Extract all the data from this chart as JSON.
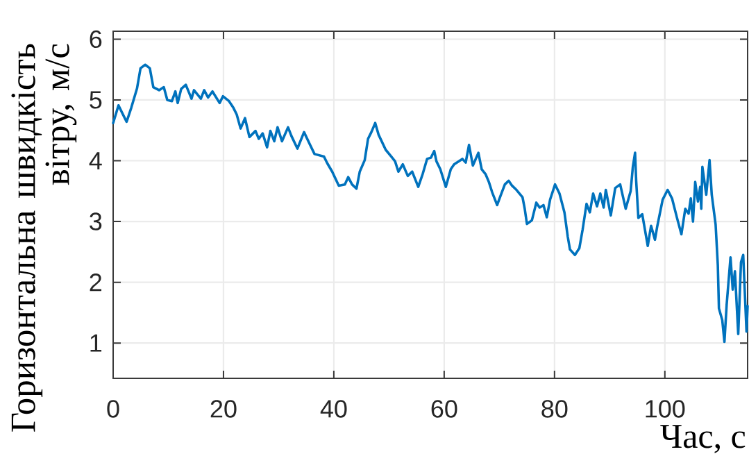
{
  "chart_data": {
    "type": "line",
    "xlabel": "Час, с",
    "ylabel": "Горизонтальна швидкість вітру, м/с",
    "xlim": [
      0,
      115
    ],
    "ylim": [
      0.42,
      6.13
    ],
    "xticks": [
      0,
      20,
      40,
      60,
      80,
      100
    ],
    "yticks": [
      1,
      2,
      3,
      4,
      5,
      6
    ],
    "grid": true,
    "series": [
      {
        "color": "#0072bd",
        "x": [
          0,
          0.97,
          2.44,
          3.28,
          4.33,
          4.96,
          5.81,
          6.65,
          7.28,
          8.33,
          9.18,
          9.81,
          10.65,
          11.28,
          11.7,
          12.33,
          13.17,
          14.2,
          14.65,
          15.9,
          16.5,
          17.2,
          18.0,
          19.3,
          19.9,
          21.0,
          21.8,
          22.4,
          23.1,
          23.9,
          24.7,
          25.8,
          26.4,
          27.1,
          27.9,
          28.5,
          29.2,
          29.8,
          30.6,
          31.7,
          32.3,
          33.4,
          34.6,
          35.7,
          36.5,
          38.2,
          38.8,
          39.7,
          40.9,
          42.0,
          42.6,
          43.3,
          44.1,
          44.7,
          45.6,
          46.2,
          46.8,
          47.5,
          48.1,
          49.4,
          50.4,
          51.1,
          51.7,
          52.5,
          53.4,
          54.2,
          55.3,
          56.1,
          56.9,
          57.6,
          58.2,
          58.6,
          59.3,
          60.3,
          61.2,
          61.8,
          63.3,
          63.9,
          64.5,
          65.2,
          66.2,
          66.8,
          67.5,
          68.1,
          68.7,
          69.6,
          70.2,
          71.0,
          71.7,
          72.3,
          73.1,
          74.2,
          74.6,
          75.0,
          75.9,
          76.7,
          77.3,
          78.0,
          78.6,
          79.2,
          80.1,
          80.9,
          81.8,
          82.4,
          82.8,
          83.7,
          84.5,
          85.1,
          85.8,
          86.4,
          87.0,
          87.7,
          88.3,
          88.9,
          89.3,
          90.2,
          91.0,
          91.9,
          92.9,
          93.8,
          94.2,
          94.6,
          94.8,
          95.2,
          95.9,
          96.9,
          97.5,
          98.2,
          98.6,
          99.6,
          100.5,
          101.3,
          102.2,
          103.0,
          103.7,
          104.3,
          104.7,
          105.1,
          105.5,
          106.0,
          106.4,
          106.6,
          106.8,
          107.5,
          108.1,
          108.5,
          109.2,
          109.6,
          109.8,
          110.4,
          110.8,
          111.2,
          111.9,
          112.3,
          112.7,
          113.3,
          113.8,
          114.2,
          114.8,
          115.0
        ],
        "values": [
          4.62,
          4.91,
          4.64,
          4.87,
          5.19,
          5.52,
          5.58,
          5.52,
          5.21,
          5.16,
          5.21,
          5.0,
          4.98,
          5.14,
          4.95,
          5.18,
          5.25,
          5.02,
          5.16,
          5.02,
          5.16,
          5.04,
          5.14,
          4.95,
          5.06,
          4.98,
          4.87,
          4.76,
          4.53,
          4.7,
          4.39,
          4.49,
          4.36,
          4.45,
          4.22,
          4.49,
          4.32,
          4.55,
          4.32,
          4.55,
          4.41,
          4.2,
          4.47,
          4.26,
          4.11,
          4.07,
          3.96,
          3.82,
          3.59,
          3.61,
          3.73,
          3.61,
          3.54,
          3.82,
          4.01,
          4.36,
          4.47,
          4.62,
          4.43,
          4.18,
          4.07,
          3.99,
          3.82,
          3.94,
          3.75,
          3.82,
          3.57,
          3.78,
          4.03,
          4.05,
          4.16,
          3.99,
          3.86,
          3.57,
          3.86,
          3.94,
          4.03,
          3.97,
          4.26,
          3.92,
          4.13,
          3.86,
          3.78,
          3.65,
          3.48,
          3.27,
          3.42,
          3.61,
          3.67,
          3.59,
          3.52,
          3.4,
          3.21,
          2.96,
          3.02,
          3.31,
          3.23,
          3.27,
          3.07,
          3.36,
          3.61,
          3.46,
          3.15,
          2.75,
          2.54,
          2.45,
          2.56,
          2.87,
          3.29,
          3.15,
          3.46,
          3.25,
          3.46,
          3.23,
          3.52,
          3.1,
          3.55,
          3.61,
          3.21,
          3.5,
          3.9,
          4.13,
          3.67,
          3.06,
          3.12,
          2.6,
          2.93,
          2.7,
          2.91,
          3.36,
          3.52,
          3.38,
          3.06,
          2.79,
          3.21,
          3.13,
          3.38,
          3.0,
          3.65,
          3.33,
          3.57,
          3.21,
          3.9,
          3.44,
          4.01,
          3.44,
          2.95,
          2.28,
          1.57,
          1.38,
          1.02,
          1.63,
          2.41,
          1.88,
          2.18,
          1.15,
          2.33,
          2.45,
          1.19,
          1.61
        ]
      }
    ]
  }
}
